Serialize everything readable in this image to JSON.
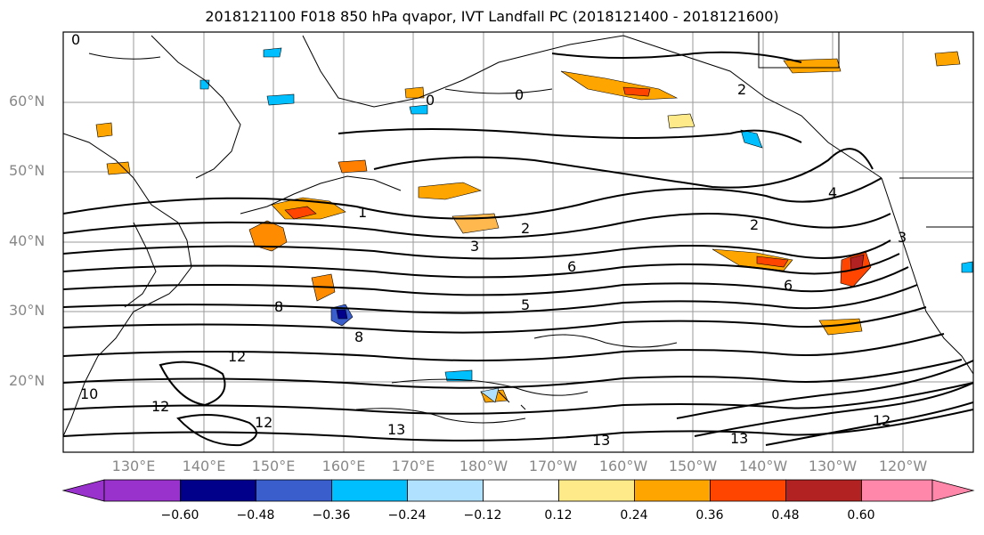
{
  "title": "2018121100 F018 850 hPa qvapor, IVT Landfall PC (2018121400 - 2018121600)",
  "lat_labels": [
    "60°N",
    "50°N",
    "40°N",
    "30°N",
    "20°N"
  ],
  "lon_labels": [
    "130°E",
    "140°E",
    "150°E",
    "160°E",
    "170°E",
    "180°W",
    "170°W",
    "160°W",
    "150°W",
    "140°W",
    "130°W",
    "120°W"
  ],
  "colorbar": {
    "ticks": [
      "−0.60",
      "−0.48",
      "−0.36",
      "−0.24",
      "−0.12",
      "0.12",
      "0.24",
      "0.36",
      "0.48",
      "0.60"
    ],
    "colors": [
      "#9932cc",
      "#00008b",
      "#3a5fcd",
      "#00bfff",
      "#b0e2ff",
      "#ffffff",
      "#ffea8a",
      "#ffa500",
      "#ff4500",
      "#b22222",
      "#ff88aa"
    ]
  },
  "contour_labels": [
    "0",
    "0",
    "0",
    "1",
    "2",
    "2",
    "2",
    "3",
    "3",
    "4",
    "5",
    "6",
    "6",
    "8",
    "8",
    "12",
    "12",
    "12",
    "13",
    "13",
    "10",
    "12",
    "13"
  ]
}
